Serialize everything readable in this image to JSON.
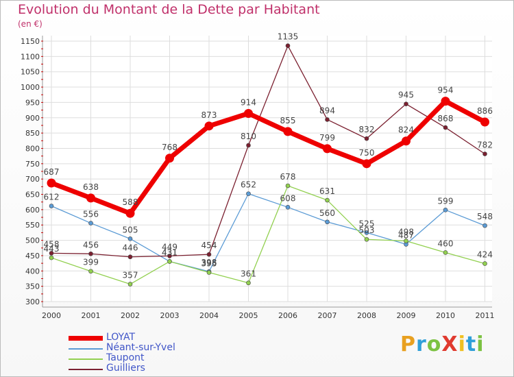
{
  "title": "Evolution du Montant de la Dette par Habitant",
  "subtitle": "(en €)",
  "brand": {
    "text": "ProXiti",
    "colors": [
      "#e8a020",
      "#2f9fd8",
      "#7cc242",
      "#e03a2f",
      "#f0c020",
      "#2f9fd8",
      "#7cc242"
    ]
  },
  "chart_data": {
    "type": "line",
    "x": [
      "2000",
      "2001",
      "2002",
      "2003",
      "2004",
      "2005",
      "2006",
      "2007",
      "2008",
      "2009",
      "2010",
      "2011"
    ],
    "ylim": [
      300,
      1150
    ],
    "yticks": [
      "300",
      "350",
      "400",
      "450",
      "500",
      "550",
      "600",
      "650",
      "700",
      "750",
      "800",
      "850",
      "900",
      "950",
      "1000",
      "1050",
      "1100",
      "1150"
    ],
    "grid": true,
    "legend_position": "bottom-left",
    "series": [
      {
        "name": "LOYAT",
        "color": "#ee0000",
        "values": [
          687,
          638,
          588,
          768,
          873,
          914,
          855,
          799,
          750,
          824,
          954,
          886
        ]
      },
      {
        "name": "Néant-sur-Yvel",
        "color": "#5b9bd5",
        "values": [
          612,
          556,
          505,
          431,
          398,
          652,
          608,
          560,
          525,
          487,
          599,
          548
        ]
      },
      {
        "name": "Taupont",
        "color": "#92d050",
        "values": [
          443,
          399,
          357,
          431,
          395,
          361,
          678,
          631,
          503,
          498,
          460,
          424
        ]
      },
      {
        "name": "Guilliers",
        "color": "#7b2030",
        "values": [
          458,
          456,
          446,
          449,
          454,
          810,
          1135,
          894,
          832,
          945,
          868,
          782
        ]
      }
    ]
  }
}
